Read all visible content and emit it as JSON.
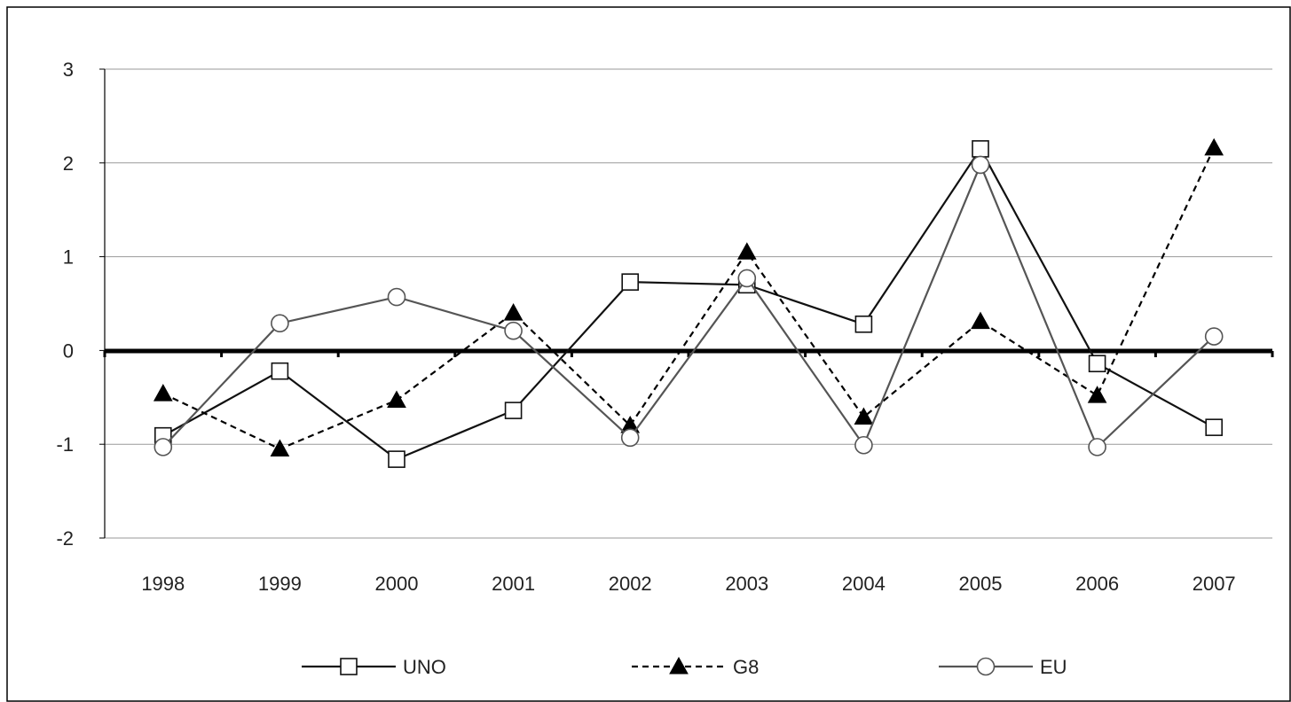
{
  "chart_data": {
    "type": "line",
    "title": "",
    "xlabel": "",
    "ylabel": "",
    "categories": [
      "1998",
      "1999",
      "2000",
      "2001",
      "2002",
      "2003",
      "2004",
      "2005",
      "2006",
      "2007"
    ],
    "ylim": [
      -2,
      3
    ],
    "yticks": [
      3,
      2,
      1,
      0,
      -1,
      -2
    ],
    "grid": true,
    "legend": "bottom",
    "series": [
      {
        "name": "UNO",
        "values": [
          -0.91,
          -0.22,
          -1.16,
          -0.64,
          0.73,
          0.7,
          0.28,
          2.15,
          -0.14,
          -0.82
        ],
        "line_style": "solid",
        "marker": "square-open",
        "color": "#111111"
      },
      {
        "name": "G8",
        "values": [
          -0.46,
          -1.05,
          -0.53,
          0.4,
          -0.8,
          1.05,
          -0.71,
          0.31,
          -0.48,
          2.16
        ],
        "line_style": "dashed",
        "marker": "triangle-filled",
        "color": "#000000"
      },
      {
        "name": "EU",
        "values": [
          -1.03,
          0.29,
          0.57,
          0.21,
          -0.93,
          0.77,
          -1.01,
          1.98,
          -1.03,
          0.15
        ],
        "line_style": "solid",
        "marker": "circle-open",
        "color": "#555555"
      }
    ]
  }
}
